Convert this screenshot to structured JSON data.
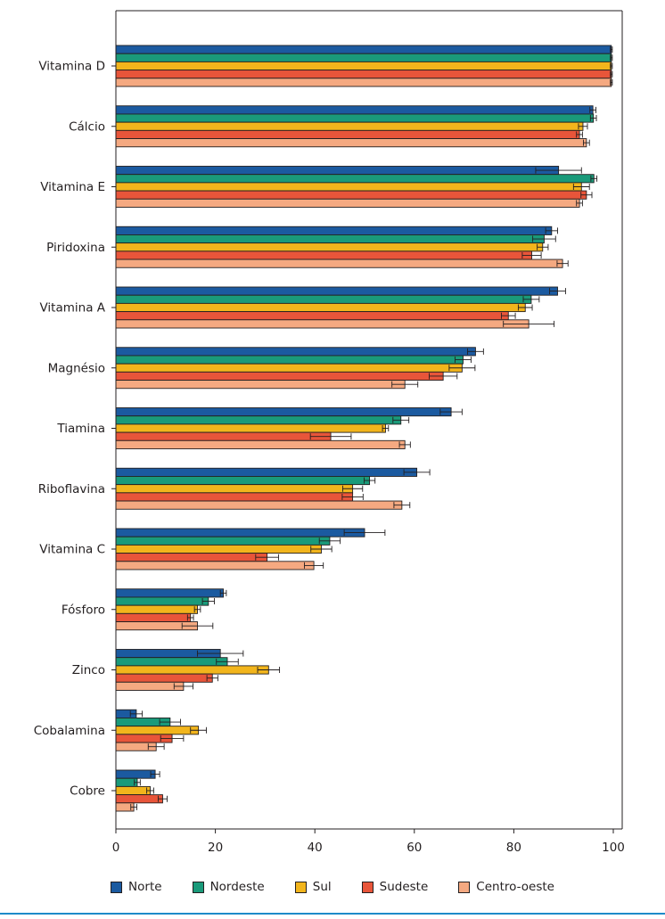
{
  "chart_data": {
    "type": "bar",
    "orientation": "horizontal",
    "categories": [
      "Vitamina D",
      "Cálcio",
      "Vitamina E",
      "Piridoxina",
      "Vitamina A",
      "Magnésio",
      "Tiamina",
      "Riboflavina",
      "Vitamina C",
      "Fósforo",
      "Zinco",
      "Cobalamina",
      "Cobre"
    ],
    "series": [
      {
        "name": "Norte",
        "color": "#1b5aa0",
        "values": [
          99.6,
          95.9,
          89.0,
          87.6,
          88.8,
          72.3,
          67.4,
          60.5,
          50.0,
          21.6,
          21.0,
          4.1,
          7.9
        ],
        "errors": [
          0.2,
          0.6,
          4.6,
          1.2,
          1.6,
          1.6,
          2.2,
          2.6,
          4.1,
          0.6,
          4.6,
          1.2,
          0.9
        ]
      },
      {
        "name": "Nordeste",
        "color": "#1a9a7a",
        "values": [
          99.6,
          96.0,
          96.1,
          86.1,
          83.5,
          69.8,
          57.3,
          51.0,
          43.0,
          18.6,
          22.4,
          10.9,
          4.3
        ],
        "errors": [
          0.2,
          0.6,
          0.6,
          2.3,
          1.6,
          1.6,
          1.6,
          1.1,
          2.1,
          1.2,
          2.2,
          2.1,
          0.6
        ]
      },
      {
        "name": "Sul",
        "color": "#f2b51c",
        "values": [
          99.6,
          93.9,
          93.6,
          85.8,
          82.3,
          69.6,
          54.2,
          47.6,
          41.3,
          16.4,
          30.7,
          16.6,
          6.9
        ],
        "errors": [
          0.2,
          0.9,
          1.6,
          1.1,
          1.4,
          2.6,
          0.6,
          2.0,
          2.1,
          0.6,
          2.2,
          1.6,
          0.7
        ]
      },
      {
        "name": "Sudeste",
        "color": "#e8553a",
        "values": [
          99.6,
          93.2,
          94.6,
          83.6,
          78.9,
          65.8,
          43.2,
          47.6,
          30.4,
          15.0,
          19.4,
          11.3,
          9.4
        ],
        "errors": [
          0.2,
          0.6,
          1.1,
          1.9,
          1.4,
          2.8,
          4.1,
          2.1,
          2.3,
          0.6,
          1.1,
          2.3,
          0.9
        ]
      },
      {
        "name": "Centro-oeste",
        "color": "#f5a981",
        "values": [
          99.6,
          94.6,
          93.2,
          89.8,
          83.0,
          58.1,
          58.1,
          57.5,
          39.8,
          16.4,
          13.6,
          8.1,
          3.6
        ],
        "errors": [
          0.2,
          0.6,
          0.6,
          1.1,
          5.1,
          2.6,
          1.1,
          1.6,
          1.9,
          3.1,
          1.9,
          1.6,
          0.6
        ]
      }
    ],
    "xlim": [
      0,
      100
    ],
    "xticks": [
      0,
      20,
      40,
      60,
      80,
      100
    ],
    "title": "",
    "xlabel": "",
    "ylabel": "",
    "grid": false,
    "legend": "bottom",
    "error_bars": true
  }
}
